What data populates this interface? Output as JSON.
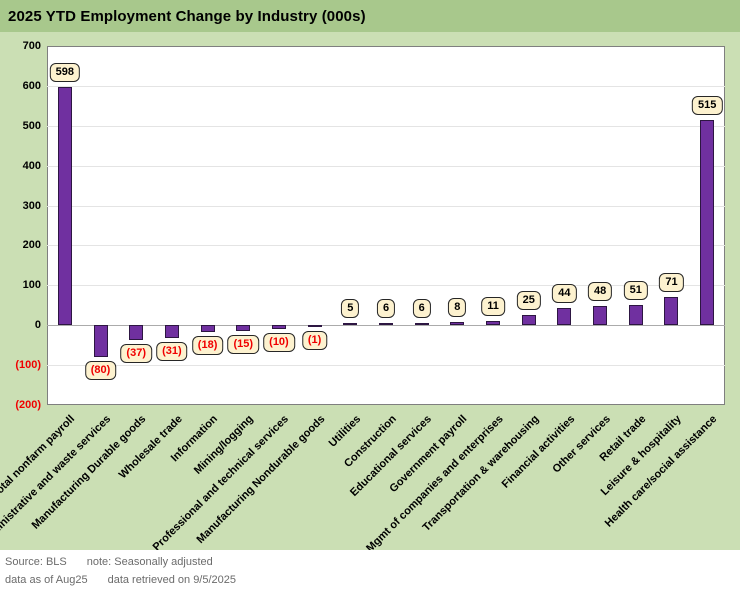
{
  "title": "2025 YTD Employment Change by Industry (000s)",
  "chart_data": {
    "type": "bar",
    "title": "2025 YTD Employment Change by Industry (000s)",
    "categories": [
      "Total nonfarm payroll",
      "Administrative and waste services",
      "Manufacturing Durable goods",
      "Wholesale trade",
      "Information",
      "Mining/logging",
      "Professional and technical services",
      "Manufacturing Nondurable goods",
      "Utilities",
      "Construction",
      "Educational services",
      "Government payroll",
      "Mgmt of companies and enterprises",
      "Transportation & warehousing",
      "Financial activities",
      "Other services",
      "Retail trade",
      "Leisure & hospitality",
      "Health care/social assistance"
    ],
    "values": [
      598,
      -80,
      -37,
      -31,
      -18,
      -15,
      -10,
      -1,
      5,
      6,
      6,
      8,
      11,
      25,
      44,
      48,
      51,
      71,
      515
    ],
    "data_labels": [
      "598",
      "(80)",
      "(37)",
      "(31)",
      "(18)",
      "(15)",
      "(10)",
      "(1)",
      "5",
      "6",
      "6",
      "8",
      "11",
      "25",
      "44",
      "48",
      "51",
      "71",
      "515"
    ],
    "ylim": [
      -200,
      700
    ],
    "ytick_step": 100,
    "ytick_labels": [
      "700",
      "600",
      "500",
      "400",
      "300",
      "200",
      "100",
      "0",
      "(100)",
      "(200)"
    ],
    "negative_format": "parentheses-red",
    "grid": "horizontal",
    "legend": "none",
    "xlabel": "",
    "ylabel": ""
  },
  "colors": {
    "title_band_bg": "#a8c88c",
    "chart_bg": "#cbdfb4",
    "plot_bg": "#ffffff",
    "plot_border": "#7f7f7f",
    "grid": "#e4e4e4",
    "zero_line": "#ababab",
    "bar_fill": "#7030a0",
    "bar_border": "#2d1642",
    "label_box_bg": "#fdf2cf",
    "label_box_border": "#262626",
    "positive_text": "#000000",
    "negative_text": "#f00000",
    "footer_text": "#6b6b6b"
  },
  "footer": {
    "source": "Source: BLS",
    "note": "note: Seasonally adjusted",
    "as_of": "data as of Aug25",
    "retrieved": "data retrieved on 9/5/2025"
  }
}
